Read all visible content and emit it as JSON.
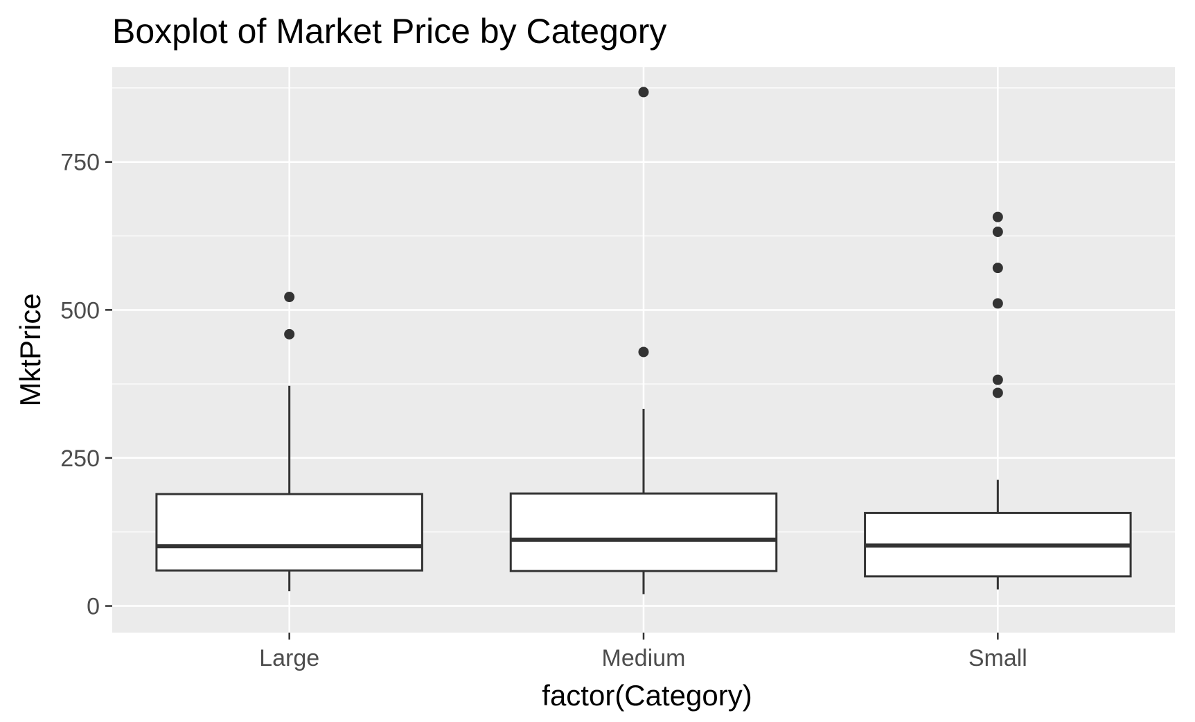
{
  "chart_data": {
    "type": "boxplot",
    "title": "Boxplot of Market Price by Category",
    "xlabel": "factor(Category)",
    "ylabel": "MktPrice",
    "ylim": [
      -45,
      910
    ],
    "y_ticks": [
      0,
      250,
      500,
      750
    ],
    "grid": true,
    "categories": [
      "Large",
      "Medium",
      "Small"
    ],
    "boxes": [
      {
        "category": "Large",
        "min": 25,
        "q1": 60,
        "median": 101,
        "q3": 189,
        "max": 372,
        "outliers": [
          522,
          459
        ]
      },
      {
        "category": "Medium",
        "min": 20,
        "q1": 59,
        "median": 112,
        "q3": 190,
        "max": 333,
        "outliers": [
          868,
          429
        ]
      },
      {
        "category": "Small",
        "min": 28,
        "q1": 50,
        "median": 102,
        "q3": 157,
        "max": 213,
        "outliers": [
          657,
          632,
          571,
          511,
          382,
          360
        ]
      }
    ],
    "colors": {
      "panel": "#ebebeb",
      "grid": "#ffffff",
      "box_fill": "#ffffff",
      "box_line": "#333333",
      "outlier": "#333333"
    }
  }
}
